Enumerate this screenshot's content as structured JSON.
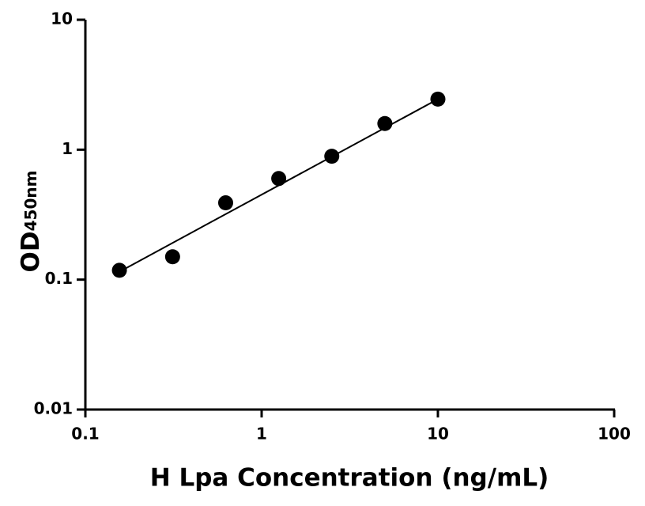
{
  "chart_data": {
    "type": "scatter",
    "x_label": "H Lpa Concentration (ng/mL)",
    "y_label": "OD",
    "y_label_sub": "450nm",
    "x_scale": "log",
    "y_scale": "log",
    "xlim": [
      0.1,
      100
    ],
    "xticks": [
      0.1,
      1,
      10,
      100
    ],
    "ylim": [
      0.01,
      10
    ],
    "yticks": [
      0.01,
      0.1,
      1,
      10
    ],
    "series": [
      {
        "type": "scatter",
        "color": "#000000",
        "x": [
          0.156,
          0.3125,
          0.625,
          1.25,
          2.5,
          5,
          10
        ],
        "values": [
          0.118,
          0.15,
          0.39,
          0.6,
          0.89,
          1.59,
          2.45
        ]
      },
      {
        "type": "line",
        "color": "#000000",
        "x": [
          0.156,
          10
        ],
        "values": [
          0.115,
          2.45
        ]
      }
    ]
  }
}
